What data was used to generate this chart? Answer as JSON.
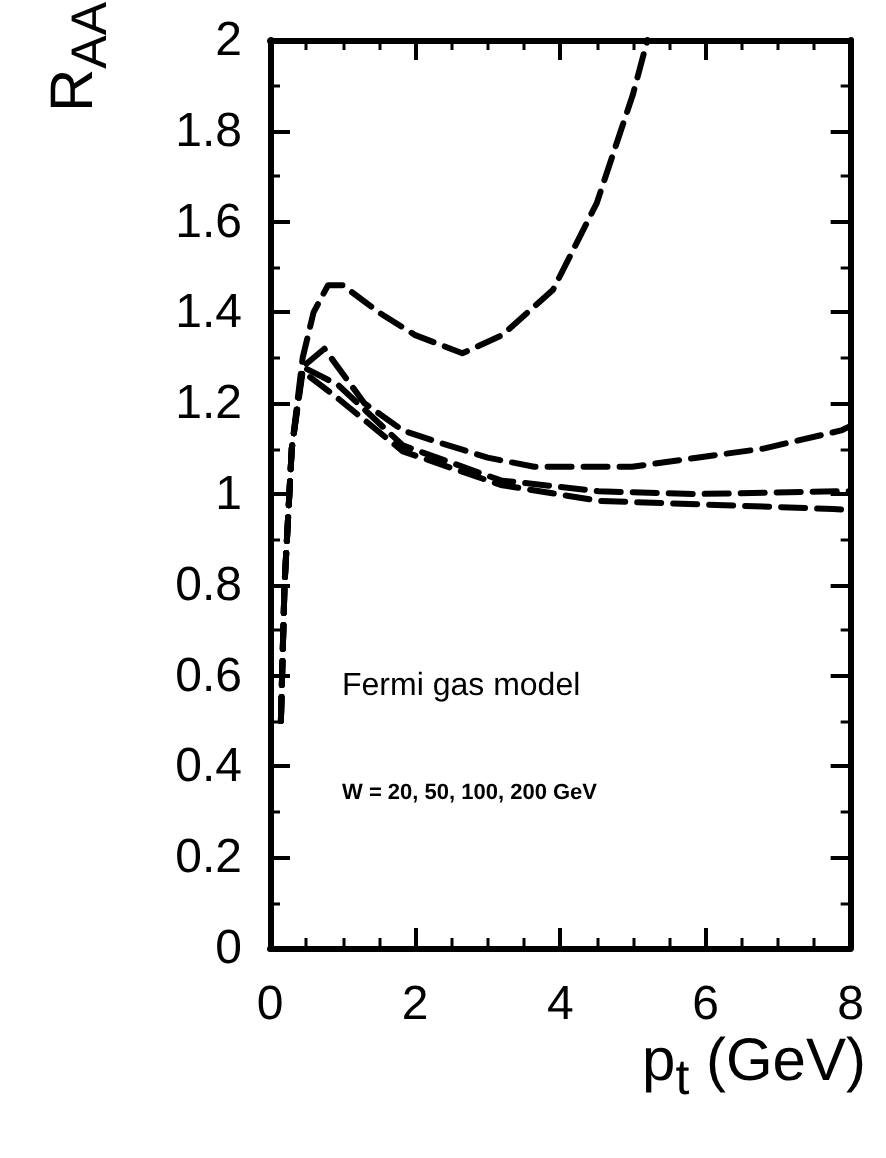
{
  "chart_data": {
    "type": "line",
    "xlabel": "p$_{t}$ (GeV)",
    "ylabel": "R$_{AA}$",
    "annotations": [
      "Fermi gas model",
      "W = 20, 50, 100, 200 GeV"
    ],
    "series": [
      {
        "color": "#000000",
        "x": [
          0.15,
          0.2,
          0.3,
          0.45,
          0.6,
          0.8,
          1.0,
          1.5,
          2.0,
          2.65,
          3.2,
          3.9,
          4.5,
          5.0,
          5.2
        ],
        "values": [
          0.5,
          0.8,
          1.1,
          1.3,
          1.4,
          1.46,
          1.46,
          1.4,
          1.35,
          1.31,
          1.35,
          1.45,
          1.64,
          1.88,
          2.0
        ]
      },
      {
        "color": "#000000",
        "x": [
          0.15,
          0.2,
          0.3,
          0.45,
          0.75,
          1.3,
          1.83,
          2.3,
          3.0,
          3.64,
          4.99,
          5.88,
          6.8,
          7.87,
          8.0
        ],
        "values": [
          0.5,
          0.8,
          1.1,
          1.28,
          1.32,
          1.2,
          1.14,
          1.115,
          1.08,
          1.06,
          1.06,
          1.08,
          1.1,
          1.14,
          1.15
        ]
      },
      {
        "color": "#000000",
        "x": [
          0.15,
          0.2,
          0.3,
          0.45,
          0.94,
          1.83,
          3.18,
          4.53,
          5.88,
          7.87,
          8.0
        ],
        "values": [
          0.5,
          0.8,
          1.1,
          1.28,
          1.24,
          1.107,
          1.03,
          1.006,
          1.0,
          1.006,
          1.006
        ]
      },
      {
        "color": "#000000",
        "x": [
          0.15,
          0.2,
          0.3,
          0.45,
          0.94,
          1.83,
          3.18,
          4.53,
          6.15,
          7.76,
          8.0
        ],
        "values": [
          0.5,
          0.8,
          1.1,
          1.27,
          1.21,
          1.094,
          1.02,
          0.985,
          0.976,
          0.967,
          0.965
        ]
      }
    ],
    "xlim": [
      0,
      8
    ],
    "xticks": [
      0,
      2,
      4,
      6,
      8
    ],
    "ylim": [
      0,
      2
    ],
    "yticks": [
      0,
      0.2,
      0.4,
      0.6,
      0.8,
      1,
      1.2,
      1.4,
      1.6,
      1.8,
      2
    ],
    "grid": false,
    "marker": "none",
    "line_style": "dashed"
  }
}
